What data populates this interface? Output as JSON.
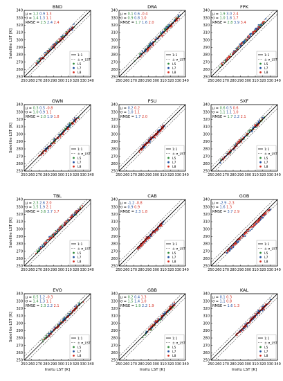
{
  "colors": {
    "L5": "#2e8b3a",
    "L7": "#1f4fa0",
    "L8": "#d42a1e",
    "mu": "#1f6fd0",
    "sigma": "#2e9a3a",
    "rmse": "#d33a20",
    "one_to_one": "#000000",
    "err_band": "#444444"
  },
  "legend": {
    "entries": [
      "1:1",
      "± σ_LST",
      "L5",
      "L7",
      "L8"
    ]
  },
  "stat_labels": {
    "mu": "μ",
    "sigma": "σ",
    "rmse": "RMSE"
  },
  "chart_data": [
    {
      "type": "scatter",
      "title": "BND",
      "xlabel": "",
      "ylabel": "Satellite LST [K]",
      "xlim": [
        250,
        340
      ],
      "ylim": [
        250,
        340
      ],
      "range": [
        268,
        318
      ],
      "legend_position": "bottom-right",
      "stats": {
        "mu": [
          "1.2",
          "0.9",
          "1.3"
        ],
        "sigma": [
          "1.4",
          "1.3",
          "1.1"
        ],
        "rmse": [
          "2.5",
          "2.4",
          "2.4"
        ]
      },
      "series": [
        {
          "name": "L5",
          "values": [
            [
              270,
              271
            ],
            [
              290,
              292
            ],
            [
              308,
              309
            ]
          ]
        },
        {
          "name": "L7",
          "values": [
            [
              272,
              274
            ],
            [
              295,
              296
            ],
            [
              315,
              316
            ]
          ]
        },
        {
          "name": "L8",
          "values": [
            [
              278,
              279
            ],
            [
              300,
              301
            ],
            [
              312,
              313
            ]
          ]
        }
      ]
    },
    {
      "type": "scatter",
      "title": "DRA",
      "xlabel": "",
      "ylabel": "",
      "xlim": [
        250,
        340
      ],
      "ylim": [
        250,
        340
      ],
      "range": [
        275,
        333
      ],
      "legend_position": "bottom-right",
      "stats": {
        "mu": [
          "0.1",
          "0.6",
          "-0.4"
        ],
        "sigma": [
          "0.9",
          "0.8",
          "1.0"
        ],
        "rmse": [
          "1.7",
          "1.6",
          "2.0"
        ]
      },
      "series": [
        {
          "name": "L5",
          "values": [
            [
              280,
              281
            ],
            [
              305,
              305
            ],
            [
              330,
              331
            ]
          ]
        },
        {
          "name": "L7",
          "values": [
            [
              285,
              286
            ],
            [
              310,
              311
            ],
            [
              325,
              326
            ]
          ]
        },
        {
          "name": "L8",
          "values": [
            [
              290,
              289
            ],
            [
              315,
              314
            ],
            [
              328,
              327
            ]
          ]
        }
      ]
    },
    {
      "type": "scatter",
      "title": "FPK",
      "xlabel": "",
      "ylabel": "",
      "xlim": [
        250,
        340
      ],
      "ylim": [
        250,
        340
      ],
      "range": [
        262,
        322
      ],
      "legend_position": "bottom-right",
      "stats": {
        "mu": [
          "1.9",
          "3.0",
          "2.4"
        ],
        "sigma": [
          "1.0",
          "1.8",
          "1.7"
        ],
        "rmse": [
          "2.8",
          "3.9",
          "3.4"
        ]
      },
      "series": [
        {
          "name": "L5",
          "values": [
            [
              265,
              267
            ],
            [
              290,
              293
            ],
            [
              315,
              317
            ]
          ]
        },
        {
          "name": "L7",
          "values": [
            [
              270,
              273
            ],
            [
              295,
              298
            ],
            [
              318,
              321
            ]
          ]
        },
        {
          "name": "L8",
          "values": [
            [
              275,
              277
            ],
            [
              300,
              303
            ],
            [
              310,
              312
            ]
          ]
        }
      ]
    },
    {
      "type": "scatter",
      "title": "GWN",
      "xlabel": "",
      "ylabel": "Satellite LST [K]",
      "xlim": [
        250,
        340
      ],
      "ylim": [
        250,
        340
      ],
      "range": [
        272,
        322
      ],
      "legend_position": "bottom-right",
      "stats": {
        "mu": [
          "0.3",
          "0.5",
          "-0.8"
        ],
        "sigma": [
          "1.0",
          "0.9",
          "1.1"
        ],
        "rmse": [
          "2.0",
          "1.9",
          "1.8"
        ]
      },
      "series": [
        {
          "name": "L5",
          "values": [
            [
              275,
              276
            ],
            [
              300,
              300
            ],
            [
              320,
              320
            ]
          ]
        },
        {
          "name": "L7",
          "values": [
            [
              280,
              281
            ],
            [
              305,
              305
            ],
            [
              318,
              318
            ]
          ]
        },
        {
          "name": "L8",
          "values": [
            [
              285,
              284
            ],
            [
              303,
              302
            ],
            [
              310,
              309
            ]
          ]
        }
      ]
    },
    {
      "type": "scatter",
      "title": "PSU",
      "xlabel": "",
      "ylabel": "",
      "xlim": [
        250,
        340
      ],
      "ylim": [
        250,
        340
      ],
      "range": [
        278,
        312
      ],
      "legend_position": "bottom-right",
      "stats": {
        "mu": [
          "",
          "0.2",
          "0.2"
        ],
        "sigma": [
          "",
          "1.0",
          "1.1"
        ],
        "rmse": [
          "",
          "1.7",
          "2.0"
        ]
      },
      "series": [
        {
          "name": "L7",
          "values": [
            [
              282,
              282
            ],
            [
              295,
              295
            ],
            [
              310,
              310
            ]
          ]
        },
        {
          "name": "L8",
          "values": [
            [
              285,
              285
            ],
            [
              300,
              300
            ],
            [
              308,
              308
            ]
          ]
        }
      ]
    },
    {
      "type": "scatter",
      "title": "SXF",
      "xlabel": "",
      "ylabel": "",
      "xlim": [
        250,
        340
      ],
      "ylim": [
        250,
        340
      ],
      "range": [
        262,
        322
      ],
      "legend_position": "bottom-right",
      "stats": {
        "mu": [
          "0.6",
          "0.5",
          "0.6"
        ],
        "sigma": [
          "1.1",
          "1.1",
          "1.0"
        ],
        "rmse": [
          "1.7",
          "2.2",
          "2.1"
        ]
      },
      "series": [
        {
          "name": "L5",
          "values": [
            [
              265,
              266
            ],
            [
              290,
              291
            ],
            [
              318,
              318
            ]
          ]
        },
        {
          "name": "L7",
          "values": [
            [
              270,
              270
            ],
            [
              295,
              296
            ],
            [
              315,
              316
            ]
          ]
        },
        {
          "name": "L8",
          "values": [
            [
              275,
              276
            ],
            [
              300,
              300
            ],
            [
              310,
              311
            ]
          ]
        }
      ]
    },
    {
      "type": "scatter",
      "title": "TBL",
      "xlabel": "",
      "ylabel": "Satellite LST [K]",
      "xlim": [
        250,
        340
      ],
      "ylim": [
        250,
        340
      ],
      "range": [
        265,
        328
      ],
      "legend_position": "bottom-right",
      "stats": {
        "mu": [
          "2.3",
          "2.6",
          "2.0"
        ],
        "sigma": [
          "1.5",
          "1.9",
          "2.1"
        ],
        "rmse": [
          "3.6",
          "3.7",
          "3.7"
        ]
      },
      "series": [
        {
          "name": "L5",
          "values": [
            [
              268,
              270
            ],
            [
              295,
              297
            ],
            [
              325,
              327
            ]
          ]
        },
        {
          "name": "L7",
          "values": [
            [
              272,
              275
            ],
            [
              300,
              303
            ],
            [
              320,
              322
            ]
          ]
        },
        {
          "name": "L8",
          "values": [
            [
              280,
              282
            ],
            [
              305,
              307
            ],
            [
              315,
              317
            ]
          ]
        }
      ]
    },
    {
      "type": "scatter",
      "title": "CAB",
      "xlabel": "",
      "ylabel": "",
      "xlim": [
        250,
        340
      ],
      "ylim": [
        250,
        340
      ],
      "range": [
        275,
        310
      ],
      "legend_position": "bottom-right",
      "stats": {
        "mu": [
          "",
          "-1.2",
          "-0.8"
        ],
        "sigma": [
          "",
          "0.9",
          "0.9"
        ],
        "rmse": [
          "",
          "2.3",
          "1.8"
        ]
      },
      "series": [
        {
          "name": "L7",
          "values": [
            [
              278,
              277
            ],
            [
              292,
              291
            ],
            [
              308,
              307
            ]
          ]
        },
        {
          "name": "L8",
          "values": [
            [
              282,
              281
            ],
            [
              297,
              296
            ],
            [
              305,
              304
            ]
          ]
        }
      ]
    },
    {
      "type": "scatter",
      "title": "GOB",
      "xlabel": "",
      "ylabel": "",
      "xlim": [
        250,
        340
      ],
      "ylim": [
        250,
        340
      ],
      "range": [
        270,
        330
      ],
      "legend_position": "bottom-right",
      "stats": {
        "mu": [
          "",
          "-2.9",
          "-2.3"
        ],
        "sigma": [
          "",
          "1.6",
          "1.3"
        ],
        "rmse": [
          "",
          "3.7",
          "2.9"
        ]
      },
      "series": [
        {
          "name": "L7",
          "values": [
            [
              275,
              272
            ],
            [
              300,
              297
            ],
            [
              328,
              325
            ]
          ]
        },
        {
          "name": "L8",
          "values": [
            [
              280,
              278
            ],
            [
              305,
              303
            ],
            [
              320,
              318
            ]
          ]
        }
      ]
    },
    {
      "type": "scatter",
      "title": "EVO",
      "xlabel": "Insitu LST [K]",
      "ylabel": "Satellite LST [K]",
      "xlim": [
        250,
        340
      ],
      "ylim": [
        250,
        340
      ],
      "range": [
        278,
        328
      ],
      "legend_position": "bottom-right",
      "stats": {
        "mu": [
          "0.5",
          "1.2",
          "-0.3"
        ],
        "sigma": [
          "1.4",
          "1.3",
          "1.1"
        ],
        "rmse": [
          "2.3",
          "2.2",
          "2.1"
        ]
      },
      "series": [
        {
          "name": "L5",
          "values": [
            [
              280,
              281
            ],
            [
              300,
              301
            ],
            [
              325,
              326
            ]
          ]
        },
        {
          "name": "L7",
          "values": [
            [
              285,
              286
            ],
            [
              305,
              306
            ],
            [
              320,
              321
            ]
          ]
        },
        {
          "name": "L8",
          "values": [
            [
              290,
              290
            ],
            [
              310,
              310
            ],
            [
              318,
              318
            ]
          ]
        }
      ]
    },
    {
      "type": "scatter",
      "title": "GBB",
      "xlabel": "Insitu LST [K]",
      "ylabel": "",
      "xlim": [
        250,
        340
      ],
      "ylim": [
        250,
        340
      ],
      "range": [
        285,
        325
      ],
      "legend_position": "bottom-right",
      "stats": {
        "mu": [
          "0.2",
          "0.4",
          "1.3"
        ],
        "sigma": [
          "1.5",
          "1.4",
          "1.0"
        ],
        "rmse": [
          "1.9",
          "2.2",
          "1.9"
        ]
      },
      "series": [
        {
          "name": "L5",
          "values": [
            [
              288,
              288
            ],
            [
              305,
              305
            ],
            [
              322,
              323
            ]
          ]
        },
        {
          "name": "L7",
          "values": [
            [
              292,
              292
            ],
            [
              310,
              311
            ],
            [
              320,
              321
            ]
          ]
        },
        {
          "name": "L8",
          "values": [
            [
              295,
              296
            ],
            [
              315,
              316
            ],
            [
              318,
              319
            ]
          ]
        }
      ]
    },
    {
      "type": "scatter",
      "title": "KAL",
      "xlabel": "Insitu LST [K]",
      "ylabel": "",
      "xlim": [
        250,
        340
      ],
      "ylim": [
        250,
        340
      ],
      "range": [
        285,
        328
      ],
      "legend_position": "bottom-right",
      "stats": {
        "mu": [
          "",
          "0.1",
          "0.3"
        ],
        "sigma": [
          "",
          "1.1",
          "0.8"
        ],
        "rmse": [
          "",
          "1.6",
          "1.3"
        ]
      },
      "series": [
        {
          "name": "L7",
          "values": [
            [
              288,
              288
            ],
            [
              305,
              305
            ],
            [
              325,
              325
            ]
          ]
        },
        {
          "name": "L8",
          "values": [
            [
              292,
              292
            ],
            [
              310,
              310
            ],
            [
              322,
              322
            ]
          ]
        }
      ]
    }
  ]
}
